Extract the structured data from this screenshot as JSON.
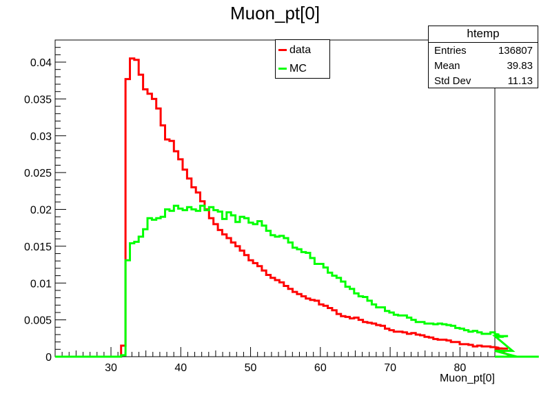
{
  "chart_data": {
    "type": "histogram",
    "title": "Muon_pt[0]",
    "xlabel": "Muon_pt[0]",
    "ylabel": "",
    "xlim": [
      22,
      85
    ],
    "ylim": [
      0,
      0.043
    ],
    "bin_width": 0.63,
    "bin_start": 22,
    "xticks": [
      30,
      40,
      50,
      60,
      70,
      80
    ],
    "yticks": [
      0,
      0.005,
      0.01,
      0.015,
      0.02,
      0.025,
      0.03,
      0.035,
      0.04
    ],
    "ytick_labels": [
      "0",
      "0.005",
      "0.01",
      "0.015",
      "0.02",
      "0.025",
      "0.03",
      "0.035",
      "0.04"
    ],
    "grid": false,
    "legend_position": "top-center",
    "series": [
      {
        "name": "data",
        "color": "#ff0000",
        "values": [
          0,
          0,
          0,
          0,
          0,
          0,
          0,
          0,
          0,
          0,
          0,
          0,
          0,
          0,
          0,
          0.0015,
          0.0377,
          0.0405,
          0.0403,
          0.0383,
          0.0363,
          0.0357,
          0.035,
          0.0337,
          0.0314,
          0.0295,
          0.0293,
          0.0279,
          0.0268,
          0.0254,
          0.0242,
          0.023,
          0.0223,
          0.0211,
          0.02,
          0.0188,
          0.018,
          0.0172,
          0.0166,
          0.0161,
          0.0155,
          0.015,
          0.0144,
          0.0138,
          0.0131,
          0.0127,
          0.0123,
          0.0117,
          0.0111,
          0.0107,
          0.0104,
          0.0101,
          0.0096,
          0.0092,
          0.0088,
          0.0085,
          0.0082,
          0.0079,
          0.0077,
          0.0076,
          0.0071,
          0.0069,
          0.0066,
          0.0063,
          0.0058,
          0.0055,
          0.0054,
          0.0052,
          0.0053,
          0.005,
          0.0047,
          0.0046,
          0.0045,
          0.0043,
          0.0042,
          0.0038,
          0.0036,
          0.0034,
          0.0034,
          0.0033,
          0.0031,
          0.0032,
          0.003,
          0.0029,
          0.0027,
          0.0026,
          0.0024,
          0.0023,
          0.0023,
          0.0022,
          0.002,
          0.002,
          0.0017,
          0.0017,
          0.0016,
          0.0014,
          0.0015,
          0.0014,
          0.0014,
          0.0013,
          0.0013,
          0.0012,
          0.0011,
          0.0011,
          0,
          0,
          0,
          0,
          0,
          0
        ]
      },
      {
        "name": "MC",
        "color": "#00ff00",
        "values": [
          0,
          0,
          0,
          0,
          0,
          0,
          0,
          0,
          0,
          0,
          0,
          0,
          0,
          0,
          0,
          0.0002,
          0.0131,
          0.0154,
          0.0156,
          0.0163,
          0.0173,
          0.0188,
          0.0186,
          0.0188,
          0.019,
          0.02,
          0.0198,
          0.0205,
          0.0201,
          0.0199,
          0.0203,
          0.02,
          0.0198,
          0.0205,
          0.0199,
          0.0203,
          0.0199,
          0.0197,
          0.0187,
          0.0196,
          0.0192,
          0.0183,
          0.019,
          0.0188,
          0.0182,
          0.018,
          0.0184,
          0.0178,
          0.0171,
          0.0165,
          0.0163,
          0.0164,
          0.0161,
          0.0155,
          0.0148,
          0.0146,
          0.0142,
          0.0141,
          0.0134,
          0.0126,
          0.0126,
          0.0121,
          0.0114,
          0.011,
          0.0107,
          0.0102,
          0.0095,
          0.0092,
          0.0086,
          0.0082,
          0.0081,
          0.0076,
          0.0071,
          0.0067,
          0.0067,
          0.0062,
          0.006,
          0.0057,
          0.0056,
          0.0056,
          0.0053,
          0.005,
          0.0047,
          0.0047,
          0.0045,
          0.0045,
          0.0044,
          0.0045,
          0.0044,
          0.0043,
          0.0042,
          0.0039,
          0.0038,
          0.0036,
          0.0034,
          0.0035,
          0.0033,
          0.0031,
          0.0031,
          0.0033,
          0.0031,
          0.003,
          0.0027,
          0.0028,
          0.0008,
          0,
          0,
          0,
          0,
          0,
          0
        ]
      }
    ]
  },
  "legend": {
    "items": [
      {
        "label": "data",
        "color": "#ff0000"
      },
      {
        "label": "MC",
        "color": "#00ff00"
      }
    ]
  },
  "stats": {
    "name": "htemp",
    "rows": [
      {
        "key": "Entries",
        "value": "136807"
      },
      {
        "key": "Mean",
        "value": "39.83"
      },
      {
        "key": "Std Dev",
        "value": "11.13"
      }
    ]
  }
}
